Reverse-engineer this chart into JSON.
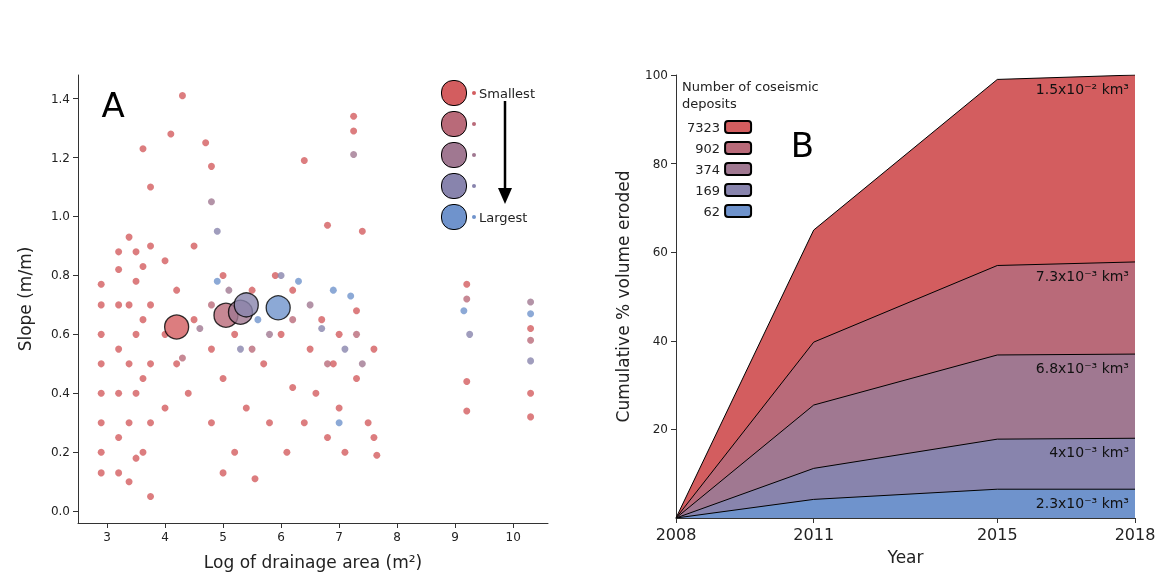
{
  "chart_data": [
    {
      "type": "scatter",
      "annotations": [
        "A"
      ],
      "xlabel": "Log of drainage area (m²)",
      "ylabel": "Slope (m/m)",
      "xlim": [
        2.5,
        10.6
      ],
      "ylim": [
        -0.04,
        1.48
      ],
      "xticks": [
        3,
        4,
        5,
        6,
        7,
        8,
        9,
        10
      ],
      "yticks": [
        {
          "value": 0,
          "label": "0.0"
        },
        0.2,
        0.4,
        0.6,
        0.8,
        {
          "value": 1,
          "label": "1.0"
        },
        1.2,
        1.4
      ],
      "legend": "top right",
      "marker": "circle",
      "grid": false,
      "series": [
        {
          "name": "Smallest",
          "color": "#d35d5f",
          "x": [
            2.9,
            2.9,
            2.9,
            2.9,
            2.9,
            2.9,
            2.9,
            2.9,
            3.2,
            3.2,
            3.2,
            3.2,
            3.2,
            3.2,
            3.2,
            3.38,
            3.38,
            3.38,
            3.38,
            3.38,
            3.5,
            3.5,
            3.5,
            3.5,
            3.5,
            3.62,
            3.62,
            3.62,
            3.62,
            3.62,
            3.75,
            3.75,
            3.75,
            3.75,
            3.75,
            3.75,
            4.0,
            4.0,
            4.0,
            4.2,
            4.2,
            4.3,
            4.1,
            4.4,
            4.5,
            4.5,
            4.7,
            4.8,
            4.8,
            4.8,
            5.0,
            5.0,
            5.0,
            5.2,
            5.2,
            5.4,
            5.5,
            5.55,
            5.7,
            5.8,
            5.9,
            6.0,
            6.1,
            6.2,
            6.2,
            6.4,
            6.4,
            6.5,
            6.6,
            6.7,
            6.8,
            6.8,
            6.9,
            7.0,
            7.0,
            7.1,
            7.25,
            7.25,
            7.3,
            7.3,
            7.4,
            7.5,
            7.6,
            7.65,
            7.6,
            9.2,
            9.2,
            9.2,
            10.3,
            10.3,
            10.3
          ],
          "values": [
            0.13,
            0.2,
            0.3,
            0.4,
            0.5,
            0.6,
            0.7,
            0.77,
            0.13,
            0.25,
            0.4,
            0.55,
            0.7,
            0.82,
            0.88,
            0.1,
            0.3,
            0.5,
            0.7,
            0.93,
            0.18,
            0.4,
            0.6,
            0.78,
            0.88,
            0.2,
            0.45,
            0.65,
            0.83,
            1.23,
            0.05,
            0.3,
            0.5,
            0.7,
            0.9,
            1.1,
            0.35,
            0.6,
            0.85,
            0.5,
            0.75,
            1.41,
            1.28,
            0.4,
            0.65,
            0.9,
            1.25,
            0.3,
            0.55,
            1.17,
            0.45,
            0.8,
            0.13,
            0.2,
            0.6,
            0.35,
            0.75,
            0.11,
            0.5,
            0.3,
            0.8,
            0.6,
            0.2,
            0.42,
            0.75,
            1.19,
            0.3,
            0.55,
            0.4,
            0.65,
            0.97,
            0.25,
            0.5,
            0.35,
            0.6,
            0.2,
            1.34,
            1.29,
            0.68,
            0.45,
            0.95,
            0.3,
            0.55,
            0.19,
            0.25,
            0.77,
            0.44,
            0.34,
            0.62,
            0.4,
            0.32
          ]
        },
        {
          "color": "#b96a79",
          "x": [
            4.3,
            4.8,
            5.5,
            6.2,
            6.8,
            7.3,
            9.2,
            10.3
          ],
          "values": [
            0.52,
            0.7,
            0.55,
            0.65,
            0.5,
            0.6,
            0.72,
            0.58
          ]
        },
        {
          "color": "#a07891",
          "x": [
            4.6,
            4.8,
            5.1,
            5.8,
            6.5,
            7.25,
            7.4,
            10.3
          ],
          "values": [
            0.62,
            1.05,
            0.75,
            0.6,
            0.7,
            1.21,
            0.5,
            0.71
          ]
        },
        {
          "color": "#8884ad",
          "x": [
            4.9,
            5.3,
            6.0,
            6.7,
            7.1,
            9.25,
            10.3
          ],
          "values": [
            0.95,
            0.55,
            0.8,
            0.62,
            0.55,
            0.6,
            0.51
          ]
        },
        {
          "name": "Largest",
          "color": "#6f93cc",
          "x": [
            4.9,
            5.6,
            6.3,
            6.9,
            7.0,
            7.2,
            9.15,
            10.3
          ],
          "values": [
            0.78,
            0.65,
            0.78,
            0.75,
            0.3,
            0.73,
            0.68,
            0.67
          ]
        },
        {
          "type": "bubble",
          "colors": [
            "#d35d5f",
            "#b96a79",
            "#a07891",
            "#8884ad",
            "#6f93cc"
          ],
          "x": [
            4.2,
            5.05,
            5.3,
            5.4,
            5.95
          ],
          "values": [
            0.625,
            0.665,
            0.675,
            0.7,
            0.69
          ],
          "sizes": [
            1,
            1,
            1,
            1,
            1
          ]
        }
      ]
    },
    {
      "type": "area",
      "stacked": true,
      "annotations": [
        "B",
        "1.5x10⁻² km³",
        "7.3x10⁻³ km³",
        "6.8x10⁻³ km³",
        "4x10⁻³ km³",
        "2.3x10⁻³ km³"
      ],
      "xlabel": "Year",
      "ylabel": "Cumulative % volume eroded",
      "legend_title": "Number of coseismic deposits",
      "legend": "top left",
      "grid": false,
      "x": [
        2008,
        2011,
        2015,
        2018
      ],
      "xlim": [
        2008,
        2018
      ],
      "xticks": [
        2008,
        2011,
        2015,
        2018
      ],
      "ylim": [
        0,
        100
      ],
      "yticks": [
        20,
        40,
        60,
        80,
        100
      ],
      "series": [
        {
          "name": "62",
          "color": "#6f93cc",
          "values": [
            0,
            4.2,
            6.5,
            6.5
          ]
        },
        {
          "name": "169",
          "color": "#8884ad",
          "values": [
            0,
            7,
            11.3,
            11.5
          ]
        },
        {
          "name": "374",
          "color": "#a07891",
          "values": [
            0,
            14.3,
            19,
            19
          ]
        },
        {
          "name": "902",
          "color": "#b96a79",
          "values": [
            0,
            14.2,
            20.2,
            20.8
          ]
        },
        {
          "name": "7323",
          "color": "#d35d5f",
          "values": [
            0,
            25.3,
            42,
            42.2
          ]
        }
      ]
    }
  ]
}
